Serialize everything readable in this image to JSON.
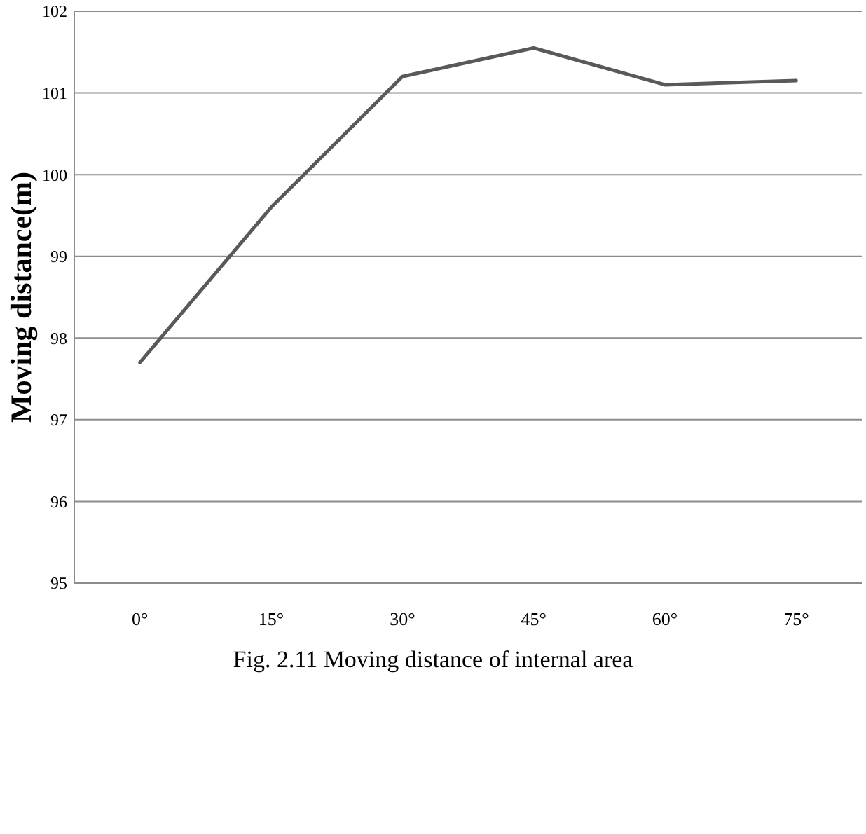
{
  "chart_data": {
    "type": "line",
    "ylabel": "Moving distance(m)",
    "categories": [
      "0°",
      "15°",
      "30°",
      "45°",
      "60°",
      "75°"
    ],
    "series": [
      {
        "color": "#595959",
        "values": [
          97.7,
          99.6,
          101.2,
          101.55,
          101.1,
          101.15
        ]
      }
    ],
    "ylim": [
      95,
      102
    ],
    "yticks": [
      95,
      96,
      97,
      98,
      99,
      100,
      101,
      102
    ],
    "grid": "y",
    "marker": "none",
    "line_style": "solid",
    "annotations": [
      "Fig. 2.11 Moving distance of internal area"
    ]
  }
}
